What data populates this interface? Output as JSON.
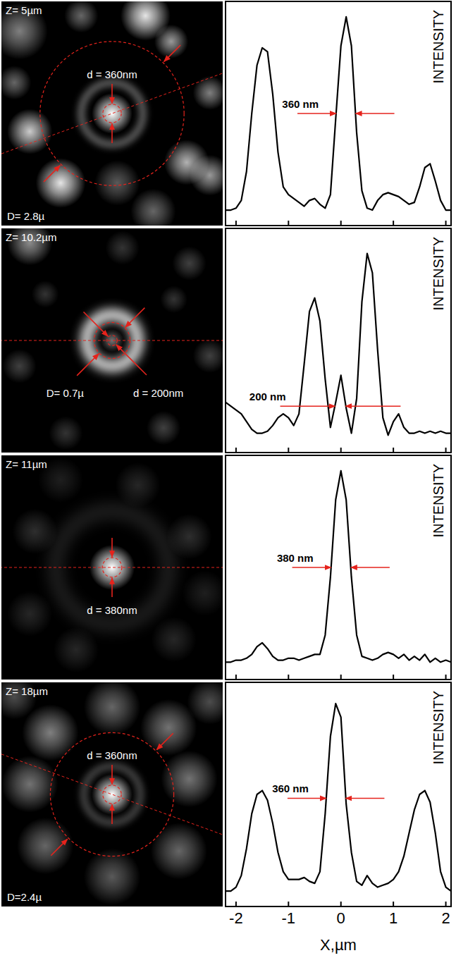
{
  "images": [
    {
      "z_label": "Z= 5µm",
      "cut_angle": 20,
      "circles": [
        {
          "d": 0.36,
          "label": "d = 360nm"
        },
        {
          "d": 2.8,
          "label": "D= 2.8µ"
        }
      ],
      "spots": [
        {
          "x": 0,
          "y": 0,
          "r": 0.18,
          "i": 1
        },
        {
          "x": 0,
          "y": 0,
          "r": 0.6,
          "w": 0.15,
          "i": 0.35
        },
        {
          "x": 0.65,
          "y": 1.9,
          "r": 0.22,
          "i": 0.9
        },
        {
          "x": 1.15,
          "y": 1.4,
          "r": 0.15,
          "i": 0.6
        },
        {
          "x": -1.6,
          "y": -0.35,
          "r": 0.2,
          "i": 0.8
        },
        {
          "x": -1.0,
          "y": -1.35,
          "r": 0.22,
          "i": 0.9
        },
        {
          "x": 1.45,
          "y": -0.95,
          "r": 0.2,
          "i": 0.7
        },
        {
          "x": 1.9,
          "y": -1.2,
          "r": 0.18,
          "i": 0.6
        },
        {
          "x": -1.8,
          "y": 1.6,
          "r": 0.25,
          "i": 0.5
        },
        {
          "x": -0.6,
          "y": 1.9,
          "r": 0.15,
          "i": 0.4
        },
        {
          "x": 0.1,
          "y": -1.35,
          "r": 0.2,
          "i": 0.35
        },
        {
          "x": 1.9,
          "y": 0.4,
          "r": 0.15,
          "i": 0.5
        },
        {
          "x": -1.9,
          "y": 0.6,
          "r": 0.15,
          "i": 0.4
        },
        {
          "x": 0.8,
          "y": -1.9,
          "r": 0.2,
          "i": 0.4
        }
      ]
    },
    {
      "z_label": "Z= 10.2µm",
      "cut_angle": 0,
      "circles": [
        {
          "d": 0.2,
          "label": "d = 200nm"
        },
        {
          "d": 0.7,
          "label": "D= 0.7µ"
        }
      ],
      "spots": [
        {
          "x": 0,
          "y": 0,
          "r": 0.5,
          "w": 0.22,
          "i": 0.9
        },
        {
          "x": 0,
          "y": 0,
          "r": 0.1,
          "i": 0.45
        },
        {
          "x": -1.6,
          "y": 1.9,
          "r": 0.2,
          "i": 0.55
        },
        {
          "x": 1.5,
          "y": 1.5,
          "r": 0.15,
          "i": 0.25
        },
        {
          "x": 0.2,
          "y": 1.8,
          "r": 0.15,
          "i": 0.2
        },
        {
          "x": -1.8,
          "y": -0.5,
          "r": 0.15,
          "i": 0.25
        },
        {
          "x": 1.9,
          "y": -0.3,
          "r": 0.15,
          "i": 0.25
        },
        {
          "x": -0.9,
          "y": -1.8,
          "r": 0.15,
          "i": 0.2
        },
        {
          "x": 1.0,
          "y": -1.7,
          "r": 0.15,
          "i": 0.25
        },
        {
          "x": -1.3,
          "y": 0.9,
          "r": 0.12,
          "i": 0.2
        },
        {
          "x": 1.2,
          "y": 0.8,
          "r": 0.12,
          "i": 0.2
        }
      ]
    },
    {
      "z_label": "Z= 11µm",
      "cut_angle": 0,
      "circles": [
        {
          "d": 0.38,
          "label": "d = 380nm"
        }
      ],
      "spots": [
        {
          "x": 0,
          "y": 0,
          "r": 0.2,
          "i": 1
        },
        {
          "x": 0,
          "y": 0,
          "r": 1.1,
          "w": 0.3,
          "i": 0.12
        },
        {
          "x": 1.5,
          "y": 0.6,
          "r": 0.2,
          "i": 0.18
        },
        {
          "x": -1.5,
          "y": 0.7,
          "r": 0.2,
          "i": 0.18
        },
        {
          "x": 0.5,
          "y": 1.6,
          "r": 0.2,
          "i": 0.15
        },
        {
          "x": -0.7,
          "y": -1.6,
          "r": 0.2,
          "i": 0.15
        },
        {
          "x": 1.2,
          "y": -1.4,
          "r": 0.2,
          "i": 0.15
        },
        {
          "x": -1.6,
          "y": -0.9,
          "r": 0.2,
          "i": 0.15
        },
        {
          "x": -1.0,
          "y": 1.7,
          "r": 0.2,
          "i": 0.12
        },
        {
          "x": 1.8,
          "y": -0.5,
          "r": 0.2,
          "i": 0.12
        }
      ]
    },
    {
      "z_label": "Z= 18µm",
      "cut_angle": -20,
      "circles": [
        {
          "d": 0.36,
          "label": "d = 360nm"
        },
        {
          "d": 2.4,
          "label": "D=2.4µ"
        }
      ],
      "spots": [
        {
          "x": 0,
          "y": 0,
          "r": 0.18,
          "i": 1
        },
        {
          "x": 0,
          "y": 0,
          "r": 0.55,
          "w": 0.15,
          "i": 0.25
        },
        {
          "x": 1.5,
          "y": 0.3,
          "r": 0.25,
          "i": 0.45
        },
        {
          "x": 1.1,
          "y": 1.3,
          "r": 0.25,
          "i": 0.45
        },
        {
          "x": 0,
          "y": 1.7,
          "r": 0.25,
          "i": 0.4
        },
        {
          "x": -1.2,
          "y": 1.2,
          "r": 0.25,
          "i": 0.5
        },
        {
          "x": -1.6,
          "y": 0.2,
          "r": 0.25,
          "i": 0.45
        },
        {
          "x": -1.3,
          "y": -1.0,
          "r": 0.25,
          "i": 0.4
        },
        {
          "x": 0,
          "y": -1.6,
          "r": 0.25,
          "i": 0.35
        },
        {
          "x": 1.3,
          "y": -1.1,
          "r": 0.25,
          "i": 0.4
        },
        {
          "x": 1.9,
          "y": 1.8,
          "r": 0.2,
          "i": 0.3
        },
        {
          "x": -1.9,
          "y": 1.9,
          "r": 0.2,
          "i": 0.3
        }
      ]
    }
  ],
  "chart_data": [
    {
      "type": "line",
      "color": "#000000",
      "y_label": "INTENSITY",
      "tick_labels": false,
      "xlim": [
        -2.2,
        2.1
      ],
      "ylim": [
        -0.08,
        1.08
      ],
      "xticks": [
        -2,
        -1,
        0,
        1,
        2
      ],
      "x": [
        -2.2,
        -2.1,
        -2.0,
        -1.9,
        -1.8,
        -1.7,
        -1.6,
        -1.5,
        -1.4,
        -1.3,
        -1.2,
        -1.1,
        -1.0,
        -0.9,
        -0.8,
        -0.7,
        -0.6,
        -0.5,
        -0.4,
        -0.3,
        -0.2,
        -0.1,
        0.0,
        0.1,
        0.2,
        0.3,
        0.4,
        0.5,
        0.6,
        0.7,
        0.8,
        0.9,
        1.0,
        1.1,
        1.2,
        1.3,
        1.4,
        1.5,
        1.6,
        1.7,
        1.8,
        1.9,
        2.0,
        2.1
      ],
      "values": [
        0,
        0,
        0.01,
        0.05,
        0.2,
        0.5,
        0.75,
        0.84,
        0.82,
        0.6,
        0.3,
        0.12,
        0.08,
        0.06,
        0.04,
        0.02,
        0.05,
        0.06,
        0.03,
        0.01,
        0.08,
        0.47,
        0.85,
        1.0,
        0.85,
        0.4,
        0.1,
        0.01,
        0,
        0.05,
        0.08,
        0.09,
        0.08,
        0.07,
        0.05,
        0.03,
        0.04,
        0.12,
        0.22,
        0.24,
        0.15,
        0.05,
        0,
        0
      ],
      "fwhm": {
        "label": "360 nm",
        "from": -0.09,
        "to": 0.28,
        "y": 0.5
      }
    },
    {
      "type": "line",
      "color": "#000000",
      "y_label": "INTENSITY",
      "tick_labels": false,
      "xlim": [
        -2.2,
        2.1
      ],
      "ylim": [
        -0.08,
        1.08
      ],
      "xticks": [
        -2,
        -1,
        0,
        1,
        2
      ],
      "x": [
        -2.2,
        -2.1,
        -2.0,
        -1.9,
        -1.8,
        -1.7,
        -1.6,
        -1.5,
        -1.4,
        -1.3,
        -1.2,
        -1.1,
        -1.0,
        -0.9,
        -0.8,
        -0.7,
        -0.6,
        -0.5,
        -0.4,
        -0.3,
        -0.2,
        -0.1,
        0.0,
        0.1,
        0.2,
        0.3,
        0.4,
        0.5,
        0.6,
        0.7,
        0.8,
        0.9,
        1.0,
        1.1,
        1.2,
        1.3,
        1.4,
        1.5,
        1.6,
        1.7,
        1.8,
        1.9,
        2.0,
        2.1
      ],
      "values": [
        0.18,
        0.16,
        0.14,
        0.12,
        0.08,
        0.04,
        0.02,
        0.02,
        0.03,
        0.06,
        0.1,
        0.12,
        0.1,
        0.06,
        0.12,
        0.38,
        0.65,
        0.72,
        0.6,
        0.3,
        0.05,
        0.18,
        0.32,
        0.15,
        0.02,
        0.2,
        0.7,
        0.95,
        0.85,
        0.45,
        0.1,
        0.01,
        0.08,
        0.12,
        0.05,
        0.02,
        0.02,
        0.03,
        0.02,
        0.03,
        0.02,
        0.03,
        0.02,
        0.02
      ],
      "fwhm": {
        "label": "200 nm",
        "from": -0.11,
        "to": 0.09,
        "y": 0.16
      }
    },
    {
      "type": "line",
      "color": "#000000",
      "y_label": "INTENSITY",
      "tick_labels": false,
      "xlim": [
        -2.2,
        2.1
      ],
      "ylim": [
        -0.08,
        1.08
      ],
      "xticks": [
        -2,
        -1,
        0,
        1,
        2
      ],
      "x": [
        -2.2,
        -2.1,
        -2.0,
        -1.9,
        -1.8,
        -1.7,
        -1.6,
        -1.5,
        -1.4,
        -1.3,
        -1.2,
        -1.1,
        -1.0,
        -0.9,
        -0.8,
        -0.7,
        -0.6,
        -0.5,
        -0.4,
        -0.3,
        -0.2,
        -0.1,
        0.0,
        0.1,
        0.2,
        0.3,
        0.4,
        0.5,
        0.6,
        0.7,
        0.8,
        0.9,
        1.0,
        1.1,
        1.2,
        1.3,
        1.4,
        1.5,
        1.6,
        1.7,
        1.8,
        1.9,
        2.0,
        2.1
      ],
      "values": [
        0.01,
        0.01,
        0.02,
        0.02,
        0.03,
        0.05,
        0.09,
        0.11,
        0.08,
        0.04,
        0.02,
        0.02,
        0.03,
        0.03,
        0.02,
        0.03,
        0.04,
        0.05,
        0.05,
        0.15,
        0.45,
        0.85,
        1.0,
        0.85,
        0.45,
        0.15,
        0.04,
        0.03,
        0.02,
        0.03,
        0.05,
        0.06,
        0.05,
        0.03,
        0.05,
        0.02,
        0.04,
        0.02,
        0.05,
        0.01,
        0.03,
        0.01,
        0.02,
        0.01
      ],
      "fwhm": {
        "label": "380 nm",
        "from": -0.19,
        "to": 0.19,
        "y": 0.5
      }
    },
    {
      "type": "line",
      "color": "#000000",
      "y_label": "INTENSITY",
      "x_label": "X,µm",
      "tick_labels": "x",
      "xlim": [
        -2.2,
        2.1
      ],
      "ylim": [
        -0.08,
        1.08
      ],
      "xticks": [
        -2,
        -1,
        0,
        1,
        2
      ],
      "x": [
        -2.2,
        -2.1,
        -2.0,
        -1.9,
        -1.8,
        -1.7,
        -1.6,
        -1.5,
        -1.4,
        -1.3,
        -1.2,
        -1.1,
        -1.0,
        -0.9,
        -0.8,
        -0.7,
        -0.6,
        -0.5,
        -0.4,
        -0.3,
        -0.2,
        -0.1,
        0.0,
        0.1,
        0.2,
        0.3,
        0.4,
        0.5,
        0.6,
        0.7,
        0.8,
        0.9,
        1.0,
        1.1,
        1.2,
        1.3,
        1.4,
        1.5,
        1.6,
        1.7,
        1.8,
        1.9,
        2.0,
        2.1
      ],
      "values": [
        0,
        0,
        0.02,
        0.08,
        0.22,
        0.4,
        0.5,
        0.52,
        0.47,
        0.35,
        0.2,
        0.1,
        0.06,
        0.06,
        0.06,
        0.07,
        0.05,
        0.04,
        0.1,
        0.4,
        0.8,
        0.97,
        0.9,
        0.45,
        0.2,
        0.05,
        0.03,
        0.08,
        0.04,
        0.02,
        0.03,
        0.04,
        0.06,
        0.1,
        0.18,
        0.3,
        0.42,
        0.5,
        0.52,
        0.46,
        0.3,
        0.1,
        0.02,
        0
      ],
      "fwhm": {
        "label": "360 nm",
        "from": -0.28,
        "to": 0.09,
        "y": 0.48
      }
    }
  ]
}
